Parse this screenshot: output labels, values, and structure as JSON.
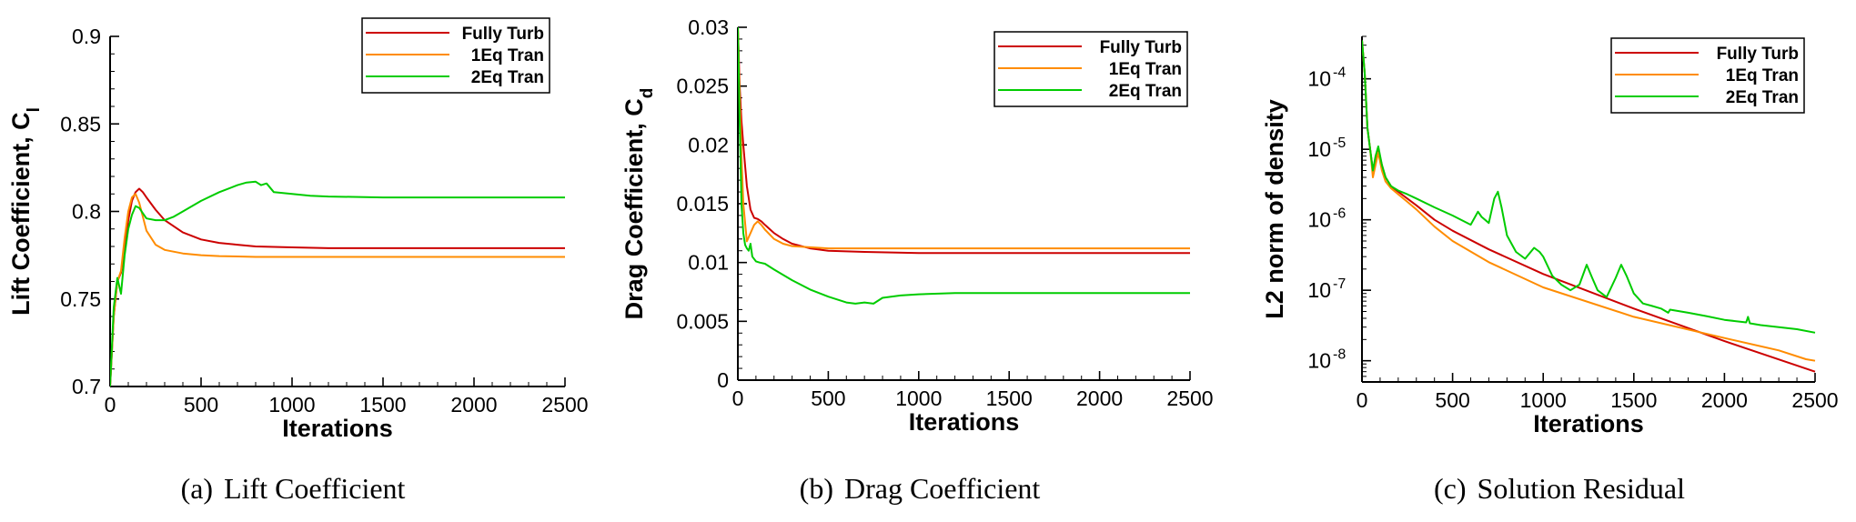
{
  "captions": [
    {
      "tag": "(a)",
      "text": "Lift Coefficient"
    },
    {
      "tag": "(b)",
      "text": "Drag Coefficient"
    },
    {
      "tag": "(c)",
      "text": "Solution Residual"
    }
  ],
  "colors": {
    "fully_turb": "#cc0000",
    "eq1_tran": "#ff8c00",
    "eq2_tran": "#00cc00"
  },
  "chart_data": [
    {
      "type": "line",
      "xlabel": "Iterations",
      "ylabel": "Lift Coefficient, C",
      "ylabel_sub": "l",
      "xlim": [
        0,
        2500
      ],
      "ylim": [
        0.7,
        0.9
      ],
      "yscale": "linear",
      "xticks": [
        0,
        500,
        1000,
        1500,
        2000,
        2500
      ],
      "yticks": [
        0.7,
        0.75,
        0.8,
        0.85,
        0.9
      ],
      "ytick_labels": [
        "0.7",
        "0.75",
        "0.8",
        "0.85",
        "0.9"
      ],
      "legend_position": "top-right",
      "grid": false,
      "series": [
        {
          "name": "Fully Turb",
          "color": "#cc0000",
          "x": [
            0,
            20,
            40,
            60,
            80,
            100,
            120,
            140,
            160,
            180,
            200,
            250,
            300,
            400,
            500,
            600,
            700,
            800,
            1000,
            1200,
            1500,
            2000,
            2500
          ],
          "y": [
            0.7,
            0.74,
            0.76,
            0.765,
            0.778,
            0.795,
            0.806,
            0.811,
            0.813,
            0.811,
            0.808,
            0.801,
            0.795,
            0.788,
            0.784,
            0.782,
            0.781,
            0.78,
            0.7795,
            0.779,
            0.779,
            0.779,
            0.779
          ]
        },
        {
          "name": "1Eq Tran",
          "color": "#ff8c00",
          "x": [
            0,
            20,
            40,
            60,
            80,
            100,
            120,
            140,
            160,
            180,
            200,
            250,
            300,
            400,
            500,
            600,
            700,
            800,
            1000,
            1500,
            2000,
            2500
          ],
          "y": [
            0.7,
            0.74,
            0.76,
            0.766,
            0.785,
            0.8,
            0.808,
            0.81,
            0.805,
            0.797,
            0.789,
            0.781,
            0.778,
            0.776,
            0.775,
            0.7745,
            0.7743,
            0.774,
            0.774,
            0.774,
            0.774,
            0.774
          ]
        },
        {
          "name": "2Eq Tran",
          "color": "#00cc00",
          "x": [
            0,
            20,
            40,
            60,
            80,
            100,
            120,
            140,
            160,
            180,
            200,
            250,
            300,
            350,
            400,
            500,
            600,
            700,
            750,
            800,
            830,
            860,
            900,
            1000,
            1100,
            1200,
            1500,
            2000,
            2500
          ],
          "y": [
            0.7,
            0.745,
            0.762,
            0.753,
            0.775,
            0.79,
            0.798,
            0.803,
            0.802,
            0.799,
            0.796,
            0.795,
            0.795,
            0.797,
            0.8,
            0.806,
            0.811,
            0.815,
            0.8165,
            0.817,
            0.815,
            0.816,
            0.811,
            0.81,
            0.809,
            0.8085,
            0.808,
            0.808,
            0.808
          ]
        }
      ]
    },
    {
      "type": "line",
      "xlabel": "Iterations",
      "ylabel": "Drag Coefficient, C",
      "ylabel_sub": "d",
      "xlim": [
        0,
        2500
      ],
      "ylim": [
        0,
        0.03
      ],
      "yscale": "linear",
      "xticks": [
        0,
        500,
        1000,
        1500,
        2000,
        2500
      ],
      "yticks": [
        0,
        0.005,
        0.01,
        0.015,
        0.02,
        0.025,
        0.03
      ],
      "ytick_labels": [
        "0",
        "0.005",
        "0.01",
        "0.015",
        "0.02",
        "0.025",
        "0.03"
      ],
      "legend_position": "top-right",
      "grid": false,
      "series": [
        {
          "name": "Fully Turb",
          "color": "#cc0000",
          "x": [
            0,
            10,
            20,
            30,
            50,
            70,
            90,
            110,
            130,
            150,
            200,
            250,
            300,
            400,
            500,
            700,
            1000,
            1500,
            2000,
            2500
          ],
          "y": [
            0.03,
            0.025,
            0.022,
            0.02,
            0.0165,
            0.0145,
            0.0138,
            0.0137,
            0.0135,
            0.0132,
            0.0125,
            0.012,
            0.0116,
            0.0112,
            0.011,
            0.0109,
            0.0108,
            0.0108,
            0.0108,
            0.0108
          ]
        },
        {
          "name": "1Eq Tran",
          "color": "#ff8c00",
          "x": [
            0,
            10,
            20,
            30,
            50,
            70,
            90,
            110,
            130,
            150,
            200,
            250,
            300,
            400,
            500,
            700,
            1000,
            1500,
            2000,
            2500
          ],
          "y": [
            0.03,
            0.024,
            0.019,
            0.015,
            0.0118,
            0.0125,
            0.0132,
            0.0135,
            0.0132,
            0.0128,
            0.012,
            0.0116,
            0.0114,
            0.0113,
            0.0112,
            0.0112,
            0.0112,
            0.0112,
            0.0112,
            0.0112
          ]
        },
        {
          "name": "2Eq Tran",
          "color": "#00cc00",
          "x": [
            0,
            10,
            20,
            30,
            40,
            50,
            60,
            70,
            80,
            100,
            120,
            150,
            200,
            300,
            400,
            500,
            600,
            650,
            700,
            750,
            800,
            900,
            1000,
            1200,
            1500,
            2000,
            2500
          ],
          "y": [
            0.03,
            0.022,
            0.015,
            0.0125,
            0.0115,
            0.0112,
            0.011,
            0.0116,
            0.0105,
            0.0101,
            0.01,
            0.0099,
            0.0094,
            0.0085,
            0.0077,
            0.0071,
            0.0066,
            0.0065,
            0.0066,
            0.0065,
            0.007,
            0.0072,
            0.0073,
            0.0074,
            0.0074,
            0.0074,
            0.0074
          ]
        }
      ]
    },
    {
      "type": "line",
      "xlabel": "Iterations",
      "ylabel": "L2 norm of density",
      "ylabel_sub": "",
      "xlim": [
        0,
        2500
      ],
      "ylim": [
        5e-09,
        0.0004
      ],
      "yscale": "log",
      "xticks": [
        0,
        500,
        1000,
        1500,
        2000,
        2500
      ],
      "yticks": [
        1e-08,
        1e-07,
        1e-06,
        1e-05,
        0.0001
      ],
      "ytick_labels": [
        "10",
        "10",
        "10",
        "10",
        "10"
      ],
      "ytick_exponents": [
        "-8",
        "-7",
        "-6",
        "-5",
        "-4"
      ],
      "legend_position": "top-right",
      "grid": false,
      "series": [
        {
          "name": "Fully Turb",
          "color": "#cc0000",
          "x": [
            0,
            15,
            30,
            45,
            60,
            75,
            90,
            110,
            130,
            160,
            200,
            250,
            300,
            400,
            500,
            700,
            1000,
            1500,
            2000,
            2500
          ],
          "y": [
            0.00035,
            0.00012,
            2e-05,
            1e-05,
            5e-06,
            7e-06,
            1e-05,
            6e-06,
            4e-06,
            3e-06,
            2.5e-06,
            2e-06,
            1.6e-06,
            1e-06,
            7e-07,
            3.8e-07,
            1.7e-07,
            5.5e-08,
            1.9e-08,
            7e-09
          ]
        },
        {
          "name": "1Eq Tran",
          "color": "#ff8c00",
          "x": [
            0,
            15,
            30,
            45,
            60,
            75,
            90,
            110,
            130,
            160,
            200,
            250,
            300,
            400,
            500,
            700,
            1000,
            1500,
            2000,
            2300,
            2450,
            2500
          ],
          "y": [
            0.00035,
            0.00012,
            2e-05,
            1e-05,
            4e-06,
            6e-06,
            9e-06,
            5e-06,
            3.5e-06,
            2.8e-06,
            2.3e-06,
            1.8e-06,
            1.4e-06,
            8e-07,
            5e-07,
            2.5e-07,
            1.1e-07,
            4.2e-08,
            2.1e-08,
            1.4e-08,
            1.05e-08,
            1e-08
          ]
        },
        {
          "name": "2Eq Tran",
          "color": "#00cc00",
          "x": [
            0,
            15,
            30,
            45,
            60,
            75,
            90,
            110,
            130,
            160,
            200,
            250,
            300,
            400,
            500,
            600,
            640,
            660,
            700,
            730,
            750,
            770,
            800,
            850,
            900,
            950,
            980,
            1000,
            1050,
            1100,
            1150,
            1200,
            1240,
            1270,
            1300,
            1350,
            1400,
            1430,
            1460,
            1500,
            1550,
            1600,
            1650,
            1690,
            1700,
            1800,
            1900,
            2000,
            2120,
            2130,
            2140,
            2200,
            2300,
            2400,
            2500
          ],
          "y": [
            0.00035,
            0.00012,
            2e-05,
            1e-05,
            5e-06,
            8e-06,
            1.1e-05,
            6e-06,
            4e-06,
            3e-06,
            2.6e-06,
            2.3e-06,
            2e-06,
            1.5e-06,
            1.15e-06,
            8.5e-07,
            1.3e-06,
            1.1e-06,
            9e-07,
            2e-06,
            2.5e-06,
            1.5e-06,
            6e-07,
            3.5e-07,
            2.8e-07,
            4e-07,
            3.5e-07,
            3e-07,
            1.6e-07,
            1.2e-07,
            1e-07,
            1.2e-07,
            2.3e-07,
            1.5e-07,
            1e-07,
            8e-08,
            1.5e-07,
            2.3e-07,
            1.6e-07,
            9e-08,
            6.5e-08,
            6e-08,
            5.5e-08,
            4.8e-08,
            5.3e-08,
            4.8e-08,
            4.3e-08,
            3.8e-08,
            3.5e-08,
            4.2e-08,
            3.4e-08,
            3.2e-08,
            3e-08,
            2.8e-08,
            2.5e-08
          ]
        }
      ]
    }
  ]
}
